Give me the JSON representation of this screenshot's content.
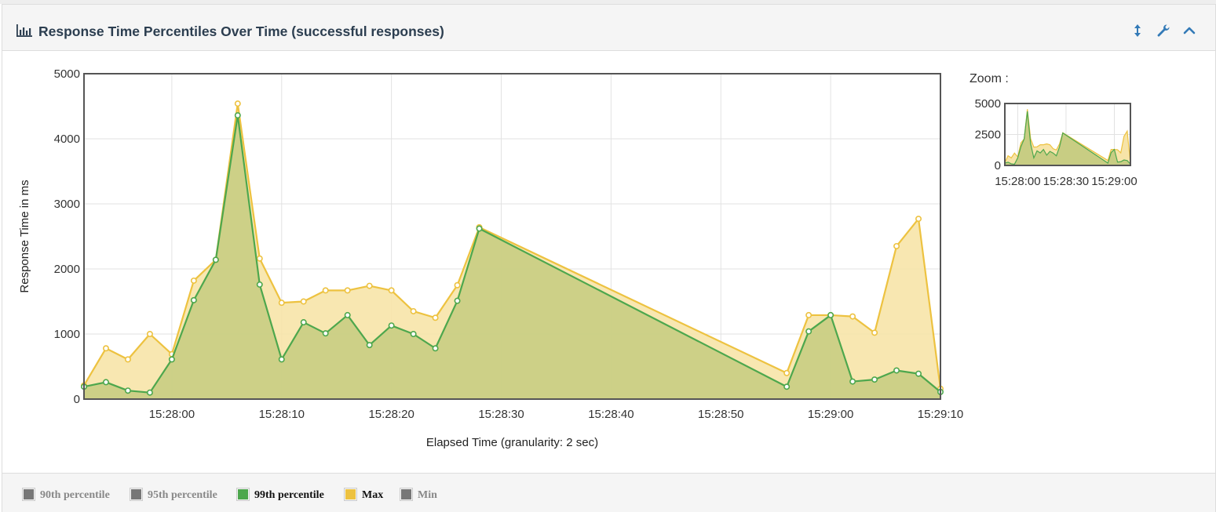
{
  "panel": {
    "title": "Response Time Percentiles Over Time (successful responses)"
  },
  "header_buttons": [
    {
      "name": "resize-icon",
      "icon": "arrows-vertical"
    },
    {
      "name": "wrench-icon",
      "icon": "wrench"
    },
    {
      "name": "collapse-icon",
      "icon": "chevron-up"
    }
  ],
  "zoom": {
    "label": "Zoom :",
    "y_ticks": [
      "5000",
      "2500",
      "0"
    ],
    "x_ticks": [
      "15:28:00",
      "15:28:30",
      "15:29:00"
    ]
  },
  "legend": [
    {
      "label": "90th percentile",
      "color": "#777777",
      "active": false
    },
    {
      "label": "95th percentile",
      "color": "#777777",
      "active": false
    },
    {
      "label": "99th percentile",
      "color": "#4da74d",
      "active": true
    },
    {
      "label": "Max",
      "color": "#edc240",
      "active": true
    },
    {
      "label": "Min",
      "color": "#777777",
      "active": false
    }
  ],
  "chart_data": {
    "type": "area",
    "xlabel": "Elapsed Time (granularity: 2 sec)",
    "ylabel": "Response Time in ms",
    "ylim": [
      0,
      5000
    ],
    "y_ticks": [
      0,
      1000,
      2000,
      3000,
      4000,
      5000
    ],
    "x_tick_labels": [
      "15:28:00",
      "15:28:10",
      "15:28:20",
      "15:28:30",
      "15:28:40",
      "15:28:50",
      "15:29:00",
      "15:29:10"
    ],
    "grid": true,
    "series": [
      {
        "name": "Max",
        "color": "#edc240",
        "fill": "#f7e4a8",
        "points": [
          [
            "15:27:52",
            210
          ],
          [
            "15:27:54",
            780
          ],
          [
            "15:27:56",
            610
          ],
          [
            "15:27:58",
            1000
          ],
          [
            "15:28:00",
            690
          ],
          [
            "15:28:02",
            1820
          ],
          [
            "15:28:04",
            2140
          ],
          [
            "15:28:06",
            4540
          ],
          [
            "15:28:08",
            2160
          ],
          [
            "15:28:10",
            1480
          ],
          [
            "15:28:12",
            1500
          ],
          [
            "15:28:14",
            1670
          ],
          [
            "15:28:16",
            1670
          ],
          [
            "15:28:18",
            1740
          ],
          [
            "15:28:20",
            1670
          ],
          [
            "15:28:22",
            1350
          ],
          [
            "15:28:24",
            1250
          ],
          [
            "15:28:26",
            1750
          ],
          [
            "15:28:28",
            2640
          ],
          [
            "15:28:56",
            400
          ],
          [
            "15:28:58",
            1290
          ],
          [
            "15:29:00",
            1290
          ],
          [
            "15:29:02",
            1270
          ],
          [
            "15:29:04",
            1020
          ],
          [
            "15:29:06",
            2350
          ],
          [
            "15:29:08",
            2770
          ],
          [
            "15:29:10",
            160
          ]
        ]
      },
      {
        "name": "99th percentile",
        "color": "#4da74d",
        "fill": "#c8cd83",
        "points": [
          [
            "15:27:52",
            190
          ],
          [
            "15:27:54",
            260
          ],
          [
            "15:27:56",
            130
          ],
          [
            "15:27:58",
            100
          ],
          [
            "15:28:00",
            610
          ],
          [
            "15:28:02",
            1520
          ],
          [
            "15:28:04",
            2140
          ],
          [
            "15:28:06",
            4360
          ],
          [
            "15:28:08",
            1760
          ],
          [
            "15:28:10",
            610
          ],
          [
            "15:28:12",
            1180
          ],
          [
            "15:28:14",
            1010
          ],
          [
            "15:28:16",
            1290
          ],
          [
            "15:28:18",
            830
          ],
          [
            "15:28:20",
            1130
          ],
          [
            "15:28:22",
            1000
          ],
          [
            "15:28:24",
            780
          ],
          [
            "15:28:26",
            1510
          ],
          [
            "15:28:28",
            2620
          ],
          [
            "15:28:56",
            190
          ],
          [
            "15:28:58",
            1040
          ],
          [
            "15:29:00",
            1290
          ],
          [
            "15:29:02",
            270
          ],
          [
            "15:29:04",
            300
          ],
          [
            "15:29:06",
            440
          ],
          [
            "15:29:08",
            390
          ],
          [
            "15:29:10",
            110
          ]
        ]
      }
    ]
  }
}
